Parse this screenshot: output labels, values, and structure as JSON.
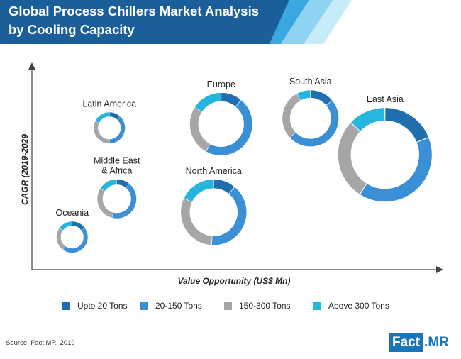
{
  "header": {
    "title_line1": "Global Process Chillers Market Analysis",
    "title_line2": "by Cooling Capacity"
  },
  "footer": {
    "source": "Source: Fact.MR, 2019",
    "logo_part1": "Fact",
    "logo_part2": ".MR"
  },
  "colors": {
    "banner_dark": "#1b5f9a",
    "banner_light1": "#3aa7e0",
    "banner_light2": "#8fd3f2",
    "text": "#222222"
  },
  "chart_data": {
    "type": "bubble-donut",
    "title": "Global Process Chillers Market Analysis by Cooling Capacity",
    "xlabel": "Value Opportunity (US$ Mn)",
    "ylabel": "CAGR (2019-2029",
    "legend_position": "bottom",
    "series": [
      {
        "name": "Upto 20 Tons",
        "color": "#1f6fae"
      },
      {
        "name": "20-150 Tons",
        "color": "#3b8fd4"
      },
      {
        "name": "150-300 Tons",
        "color": "#a6a6a6"
      },
      {
        "name": "Above 300 Tons",
        "color": "#24b6dc"
      }
    ],
    "regions": [
      {
        "name": "Latin America",
        "rel_value": 0.17,
        "rel_cagr": 0.71,
        "size": 2,
        "shares": [
          12,
          38,
          32,
          18
        ]
      },
      {
        "name": "Europe",
        "rel_value": 0.47,
        "rel_cagr": 0.73,
        "size": 4,
        "shares": [
          11,
          47,
          26,
          16
        ]
      },
      {
        "name": "South Asia",
        "rel_value": 0.71,
        "rel_cagr": 0.76,
        "size": 3.6,
        "shares": [
          14,
          49,
          29,
          8
        ]
      },
      {
        "name": "East Asia",
        "rel_value": 0.91,
        "rel_cagr": 0.57,
        "size": 6,
        "shares": [
          19,
          40,
          28,
          13
        ]
      },
      {
        "name": "Middle East & Africa",
        "rel_value": 0.19,
        "rel_cagr": 0.34,
        "size": 2.5,
        "shares": [
          11,
          43,
          30,
          16
        ]
      },
      {
        "name": "North America",
        "rel_value": 0.45,
        "rel_cagr": 0.27,
        "size": 4.2,
        "shares": [
          11,
          40,
          31,
          18
        ]
      },
      {
        "name": "Oceania",
        "rel_value": 0.07,
        "rel_cagr": 0.14,
        "size": 2,
        "shares": [
          15,
          45,
          25,
          15
        ]
      }
    ]
  }
}
